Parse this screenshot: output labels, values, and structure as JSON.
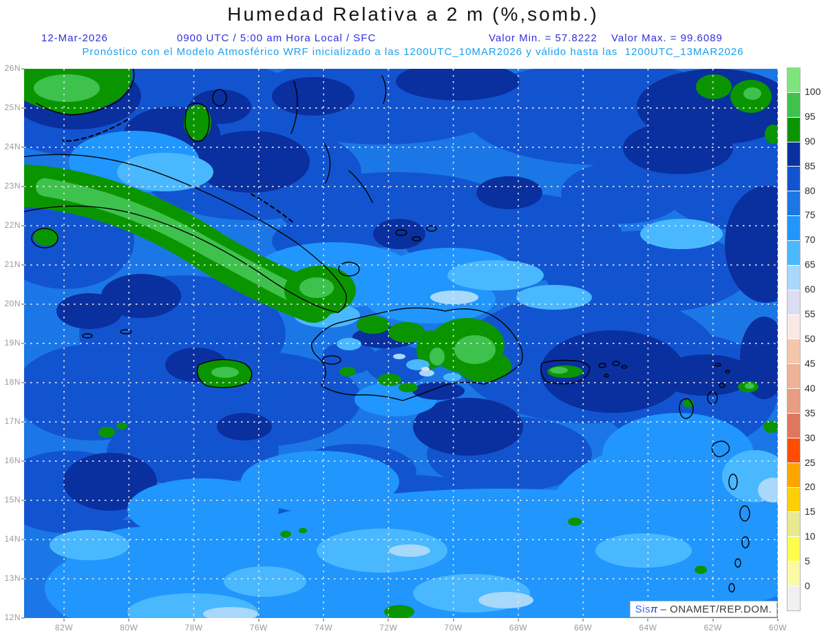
{
  "page_title": "Humedad Relativa a 2 m (%,somb.)",
  "header": {
    "date": "12-Mar-2026",
    "run_info": "0900 UTC / 5:00 am Hora Local / SFC",
    "valor_min": "Valor Min. = 57.8222",
    "valor_max": "Valor Max. = 99.6089",
    "model_line": "Pronóstico con el Modelo Atmosférico WRF inicializado a las 1200UTC_10MAR2026 y válido hasta las  1200UTC_13MAR2026"
  },
  "map_meta": {
    "field": "Humedad Relativa a 2 m (%)",
    "value_min": 57.8222,
    "value_max": 99.6089,
    "lat_top": "26N",
    "lat_bottom": "12N",
    "lon_left": "82W",
    "lon_right": "60W"
  },
  "axes": {
    "lat_labels": [
      "26N",
      "25N",
      "24N",
      "23N",
      "22N",
      "21N",
      "20N",
      "19N",
      "18N",
      "17N",
      "16N",
      "15N",
      "14N",
      "13N",
      "12N"
    ],
    "lon_labels": [
      "82W",
      "80W",
      "78W",
      "76W",
      "74W",
      "72W",
      "70W",
      "68W",
      "66W",
      "64W",
      "62W",
      "60W"
    ]
  },
  "colorbar": {
    "tick_labels": [
      "100",
      "95",
      "90",
      "85",
      "80",
      "75",
      "70",
      "65",
      "60",
      "55",
      "50",
      "45",
      "40",
      "35",
      "30",
      "25",
      "20",
      "15",
      "10",
      "5",
      "0"
    ],
    "cells": [
      {
        "range": "> 100",
        "color": "#7ce57d"
      },
      {
        "range": "95-100",
        "color": "#3fc14e"
      },
      {
        "range": "90-95",
        "color": "#0a9500"
      },
      {
        "range": "85-90",
        "color": "#0a2f9e"
      },
      {
        "range": "80-85",
        "color": "#1254cf"
      },
      {
        "range": "75-80",
        "color": "#1c77e6"
      },
      {
        "range": "70-75",
        "color": "#2196fd"
      },
      {
        "range": "65-70",
        "color": "#4ab8ff"
      },
      {
        "range": "60-65",
        "color": "#a8d8fa"
      },
      {
        "range": "55-60",
        "color": "#dcddf2"
      },
      {
        "range": "50-55",
        "color": "#fae8e4"
      },
      {
        "range": "45-50",
        "color": "#f4c6ac"
      },
      {
        "range": "40-45",
        "color": "#f0b297"
      },
      {
        "range": "35-40",
        "color": "#e89c82"
      },
      {
        "range": "30-35",
        "color": "#e0765e"
      },
      {
        "range": "25-30",
        "color": "#fc4d03"
      },
      {
        "range": "20-25",
        "color": "#fca600"
      },
      {
        "range": "15-20",
        "color": "#fbd005"
      },
      {
        "range": "10-15",
        "color": "#e9e98f"
      },
      {
        "range": "5-10",
        "color": "#fdfd4e"
      },
      {
        "range": "0-5",
        "color": "#fafaa6"
      },
      {
        "range": "< 0",
        "color": "#f0f0f0"
      }
    ]
  },
  "watermark": {
    "sis": "Sis",
    "pi": "π",
    "agency": "– ONAMET/REP.DOM."
  },
  "colors": {
    "header_blue": "#2f2fd9",
    "model_cyan": "#18a0f2",
    "axis_gray": "#9a9a9a",
    "title_black": "#141414"
  }
}
